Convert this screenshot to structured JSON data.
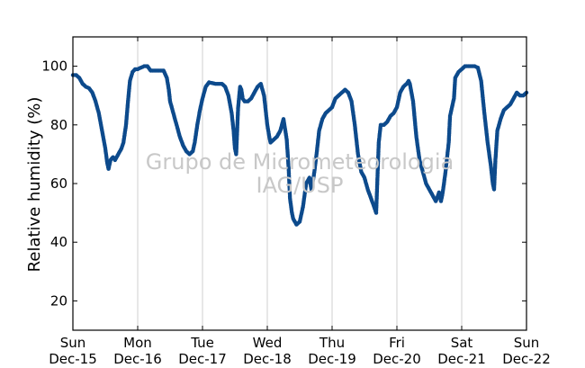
{
  "chart_data": {
    "type": "scatter",
    "title": "",
    "xlabel": "",
    "ylabel": "Relative humidity (%)",
    "xlim": [
      0,
      7
    ],
    "ylim": [
      10,
      110
    ],
    "grid": "vertical",
    "x_unit": "days from Sun Dec-15 00:00",
    "x_ticks": [
      {
        "value": 0,
        "day": "Sun",
        "date": "Dec-15"
      },
      {
        "value": 1,
        "day": "Mon",
        "date": "Dec-16"
      },
      {
        "value": 2,
        "day": "Tue",
        "date": "Dec-17"
      },
      {
        "value": 3,
        "day": "Wed",
        "date": "Dec-18"
      },
      {
        "value": 4,
        "day": "Thu",
        "date": "Dec-19"
      },
      {
        "value": 5,
        "day": "Fri",
        "date": "Dec-20"
      },
      {
        "value": 6,
        "day": "Sat",
        "date": "Dec-21"
      },
      {
        "value": 7,
        "day": "Sun",
        "date": "Dec-22"
      }
    ],
    "y_ticks": [
      20,
      40,
      60,
      80,
      100
    ],
    "series": [
      {
        "name": "",
        "color": "#0d4a8c",
        "points": [
          [
            0.0,
            97
          ],
          [
            0.05,
            97
          ],
          [
            0.1,
            96
          ],
          [
            0.15,
            94
          ],
          [
            0.2,
            93
          ],
          [
            0.25,
            92.5
          ],
          [
            0.3,
            91
          ],
          [
            0.35,
            88
          ],
          [
            0.4,
            84
          ],
          [
            0.45,
            78
          ],
          [
            0.5,
            72
          ],
          [
            0.53,
            67
          ],
          [
            0.55,
            65
          ],
          [
            0.58,
            68
          ],
          [
            0.62,
            69
          ],
          [
            0.65,
            68
          ],
          [
            0.7,
            70
          ],
          [
            0.75,
            72
          ],
          [
            0.78,
            74
          ],
          [
            0.82,
            80
          ],
          [
            0.85,
            88
          ],
          [
            0.88,
            95
          ],
          [
            0.92,
            98
          ],
          [
            0.96,
            99
          ],
          [
            1.0,
            99
          ],
          [
            1.05,
            99.5
          ],
          [
            1.1,
            100
          ],
          [
            1.15,
            100
          ],
          [
            1.2,
            98.5
          ],
          [
            1.25,
            98.5
          ],
          [
            1.3,
            98.5
          ],
          [
            1.35,
            98.5
          ],
          [
            1.4,
            98.5
          ],
          [
            1.45,
            96
          ],
          [
            1.48,
            92
          ],
          [
            1.5,
            88
          ],
          [
            1.55,
            84
          ],
          [
            1.6,
            80
          ],
          [
            1.65,
            76
          ],
          [
            1.7,
            73
          ],
          [
            1.75,
            71
          ],
          [
            1.8,
            70
          ],
          [
            1.85,
            71
          ],
          [
            1.88,
            74
          ],
          [
            1.92,
            80
          ],
          [
            1.96,
            85
          ],
          [
            2.0,
            89
          ],
          [
            2.05,
            93
          ],
          [
            2.1,
            94.5
          ],
          [
            2.2,
            94
          ],
          [
            2.3,
            94
          ],
          [
            2.35,
            93
          ],
          [
            2.4,
            90
          ],
          [
            2.45,
            84
          ],
          [
            2.48,
            78
          ],
          [
            2.5,
            72
          ],
          [
            2.52,
            70
          ],
          [
            2.55,
            86
          ],
          [
            2.58,
            93
          ],
          [
            2.6,
            92
          ],
          [
            2.62,
            89
          ],
          [
            2.65,
            88
          ],
          [
            2.7,
            88
          ],
          [
            2.75,
            89
          ],
          [
            2.8,
            91
          ],
          [
            2.85,
            93
          ],
          [
            2.9,
            94
          ],
          [
            2.95,
            90
          ],
          [
            2.97,
            86
          ],
          [
            3.0,
            80
          ],
          [
            3.03,
            76
          ],
          [
            3.05,
            74
          ],
          [
            3.1,
            75
          ],
          [
            3.15,
            76
          ],
          [
            3.2,
            78
          ],
          [
            3.25,
            82
          ],
          [
            3.3,
            75
          ],
          [
            3.33,
            65
          ],
          [
            3.35,
            55
          ],
          [
            3.38,
            50
          ],
          [
            3.4,
            48
          ],
          [
            3.45,
            46
          ],
          [
            3.5,
            47
          ],
          [
            3.55,
            52
          ],
          [
            3.6,
            60
          ],
          [
            3.65,
            62
          ],
          [
            3.68,
            58
          ],
          [
            3.72,
            63
          ],
          [
            3.76,
            70
          ],
          [
            3.8,
            78
          ],
          [
            3.85,
            82
          ],
          [
            3.9,
            84
          ],
          [
            3.95,
            85
          ],
          [
            4.0,
            86
          ],
          [
            4.05,
            89
          ],
          [
            4.1,
            90
          ],
          [
            4.15,
            91
          ],
          [
            4.2,
            92
          ],
          [
            4.25,
            91
          ],
          [
            4.3,
            88
          ],
          [
            4.35,
            80
          ],
          [
            4.4,
            70
          ],
          [
            4.45,
            64
          ],
          [
            4.5,
            62
          ],
          [
            4.55,
            58
          ],
          [
            4.6,
            55
          ],
          [
            4.65,
            52
          ],
          [
            4.68,
            50
          ],
          [
            4.7,
            62
          ],
          [
            4.72,
            74
          ],
          [
            4.75,
            80
          ],
          [
            4.8,
            80
          ],
          [
            4.85,
            81
          ],
          [
            4.9,
            83
          ],
          [
            4.95,
            84
          ],
          [
            5.0,
            86
          ],
          [
            5.05,
            91
          ],
          [
            5.1,
            93
          ],
          [
            5.15,
            94
          ],
          [
            5.18,
            95
          ],
          [
            5.2,
            94
          ],
          [
            5.25,
            88
          ],
          [
            5.3,
            76
          ],
          [
            5.35,
            68
          ],
          [
            5.4,
            64
          ],
          [
            5.45,
            60
          ],
          [
            5.5,
            58
          ],
          [
            5.55,
            56
          ],
          [
            5.6,
            54
          ],
          [
            5.62,
            55
          ],
          [
            5.65,
            57
          ],
          [
            5.68,
            54
          ],
          [
            5.7,
            56
          ],
          [
            5.72,
            59
          ],
          [
            5.75,
            64
          ],
          [
            5.78,
            70
          ],
          [
            5.8,
            74
          ],
          [
            5.82,
            83
          ],
          [
            5.85,
            86
          ],
          [
            5.88,
            89
          ],
          [
            5.9,
            96
          ],
          [
            5.95,
            98
          ],
          [
            6.0,
            99
          ],
          [
            6.05,
            100
          ],
          [
            6.1,
            100
          ],
          [
            6.15,
            100
          ],
          [
            6.2,
            100
          ],
          [
            6.25,
            99.5
          ],
          [
            6.3,
            95
          ],
          [
            6.35,
            84
          ],
          [
            6.4,
            74
          ],
          [
            6.45,
            66
          ],
          [
            6.48,
            60
          ],
          [
            6.5,
            58
          ],
          [
            6.52,
            68
          ],
          [
            6.55,
            78
          ],
          [
            6.6,
            82
          ],
          [
            6.65,
            85
          ],
          [
            6.7,
            86
          ],
          [
            6.75,
            87
          ],
          [
            6.8,
            89
          ],
          [
            6.85,
            91
          ],
          [
            6.9,
            90
          ],
          [
            6.95,
            90
          ],
          [
            7.0,
            91
          ]
        ]
      }
    ]
  },
  "watermark": {
    "line1": "Grupo de Micrometeorologia",
    "line2": "IAG/USP"
  }
}
